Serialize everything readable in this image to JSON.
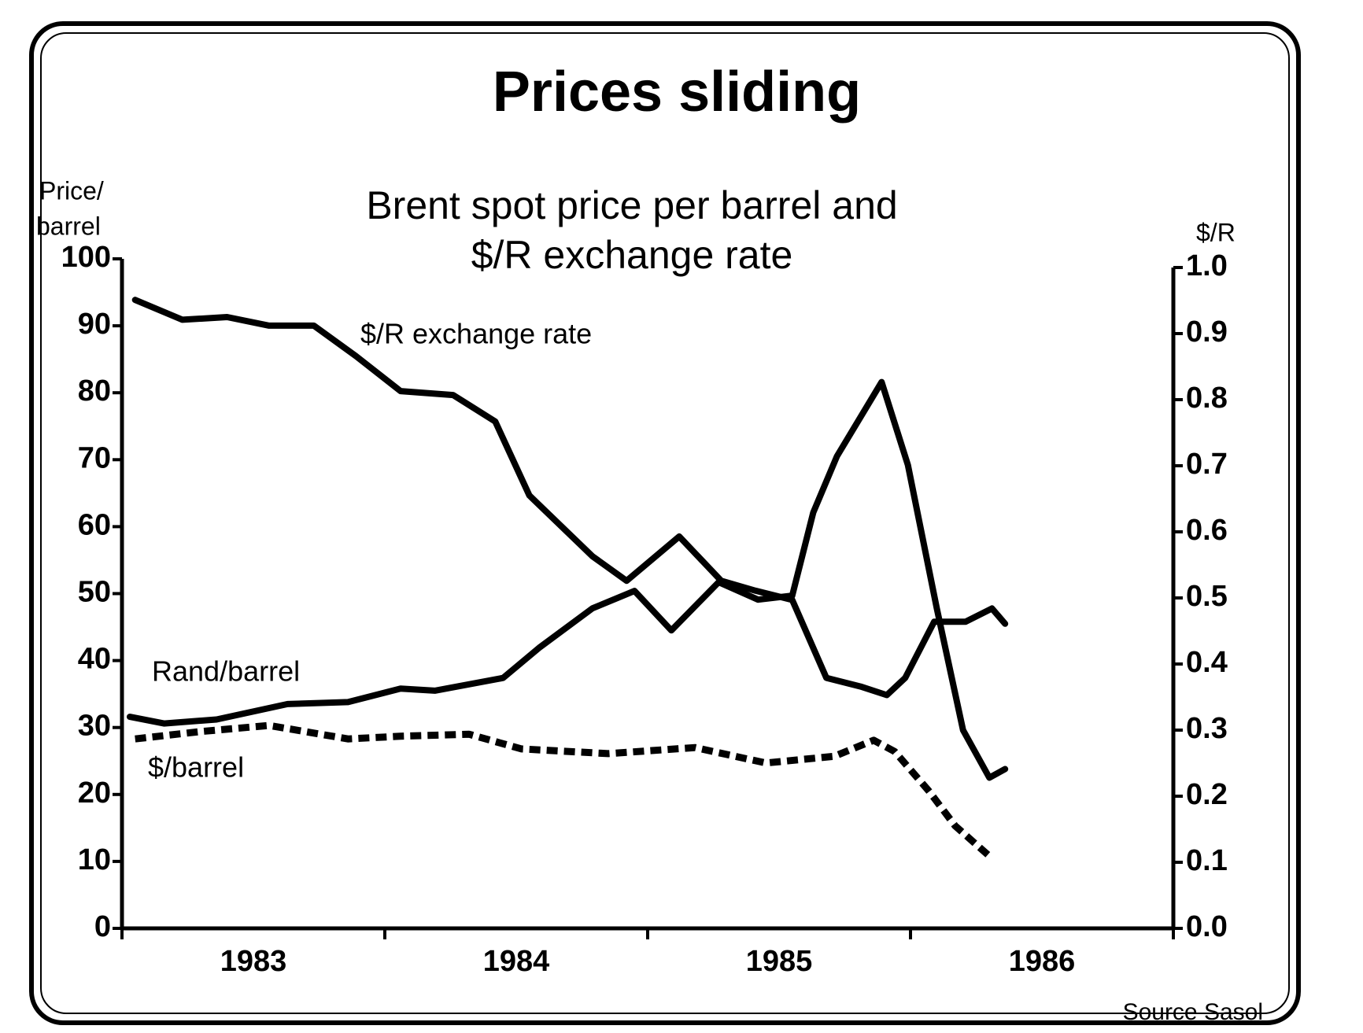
{
  "chart_data": {
    "type": "line",
    "title": "Prices sliding",
    "subtitle": [
      "Brent spot price per barrel and",
      "$/R exchange rate"
    ],
    "ylabel": [
      "Price/",
      "barrel"
    ],
    "y2label": "$/R",
    "source": "Source  Sasol",
    "xlim": [
      1983,
      1987
    ],
    "xticks": [
      {
        "value": 1983.5,
        "label": "1983"
      },
      {
        "value": 1984.5,
        "label": "1984"
      },
      {
        "value": 1985.5,
        "label": "1985"
      },
      {
        "value": 1986.5,
        "label": "1986"
      }
    ],
    "ylim": [
      0,
      100
    ],
    "yticks": [
      0,
      10,
      20,
      30,
      40,
      50,
      60,
      70,
      80,
      90,
      100
    ],
    "y2lim": [
      0,
      1
    ],
    "y2ticks": [
      {
        "value": 0,
        "label": "0.0"
      },
      0.1,
      0.2,
      0.3,
      0.4,
      0.5,
      0.6,
      0.7,
      0.8,
      0.9,
      {
        "value": 1,
        "label": "1.0"
      }
    ],
    "grid": false,
    "series": [
      {
        "name": "Rand/barrel",
        "color": "#000000",
        "style": "solid",
        "x": [
          1983.03,
          1983.16,
          1983.36,
          1983.63,
          1983.86,
          1984.06,
          1984.19,
          1984.45,
          1984.59,
          1984.79,
          1984.95,
          1985.09,
          1985.27,
          1985.42,
          1985.55,
          1985.63,
          1985.72,
          1985.89,
          1985.99,
          1986.1,
          1986.2,
          1986.3,
          1986.36
        ],
        "values": [
          31.6,
          30.6,
          31.2,
          33.5,
          33.8,
          35.8,
          35.5,
          37.4,
          42.0,
          47.8,
          50.4,
          44.5,
          51.7,
          49.1,
          49.7,
          62.1,
          70.5,
          81.6,
          69.2,
          47.8,
          29.6,
          22.5,
          23.8
        ]
      },
      {
        "name": "$/barrel",
        "color": "#000000",
        "style": "dashed",
        "x": [
          1983.05,
          1983.3,
          1983.56,
          1983.86,
          1984.06,
          1984.32,
          1984.52,
          1984.85,
          1985.18,
          1985.45,
          1985.71,
          1985.86,
          1985.94,
          1986.07,
          1986.17,
          1986.3
        ],
        "values": [
          28.3,
          29.4,
          30.3,
          28.3,
          28.7,
          29.0,
          26.8,
          26.1,
          27.0,
          24.7,
          25.7,
          28.1,
          26.4,
          20.5,
          15.3,
          10.8
        ]
      },
      {
        "name": "$/R exchange rate",
        "color": "#000000",
        "style": "solid",
        "axis": "y2",
        "x": [
          1983.05,
          1983.23,
          1983.4,
          1983.56,
          1983.73,
          1983.89,
          1984.06,
          1984.26,
          1984.42,
          1984.55,
          1984.79,
          1984.92,
          1985.12,
          1985.28,
          1985.41,
          1985.55,
          1985.68,
          1985.81,
          1985.91,
          1985.98,
          1986.09,
          1986.21,
          1986.31,
          1986.36
        ],
        "values": [
          0.951,
          0.921,
          0.925,
          0.912,
          0.912,
          0.866,
          0.813,
          0.807,
          0.767,
          0.655,
          0.563,
          0.526,
          0.593,
          0.526,
          0.511,
          0.497,
          0.379,
          0.366,
          0.353,
          0.379,
          0.464,
          0.464,
          0.484,
          0.461
        ]
      }
    ]
  }
}
